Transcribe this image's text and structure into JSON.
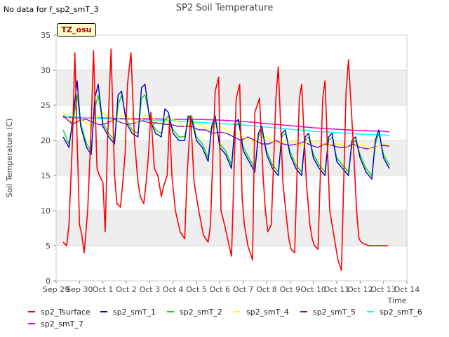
{
  "header": {
    "nodata_note": "No data for f_sp2_smT_3",
    "tz_label": "TZ_osu"
  },
  "chart_data": {
    "type": "line",
    "title": "SP2 Soil Temperature",
    "xlabel": "Time",
    "ylabel": "Soil Temperature (C)",
    "ylim": [
      0,
      35
    ],
    "yticks": [
      0,
      5,
      10,
      15,
      20,
      25,
      30,
      35
    ],
    "xlim": [
      0,
      15
    ],
    "xticks": [
      {
        "v": 0,
        "label": "Sep 29"
      },
      {
        "v": 1,
        "label": "Sep 30"
      },
      {
        "v": 2,
        "label": "Oct 1"
      },
      {
        "v": 3,
        "label": "Oct 2"
      },
      {
        "v": 4,
        "label": "Oct 3"
      },
      {
        "v": 5,
        "label": "Oct 4"
      },
      {
        "v": 6,
        "label": "Oct 5"
      },
      {
        "v": 7,
        "label": "Oct 6"
      },
      {
        "v": 8,
        "label": "Oct 7"
      },
      {
        "v": 9,
        "label": "Oct 8"
      },
      {
        "v": 10,
        "label": "Oct 9"
      },
      {
        "v": 11,
        "label": "Oct 10"
      },
      {
        "v": 12,
        "label": "Oct 11"
      },
      {
        "v": 13,
        "label": "Oct 12"
      },
      {
        "v": 14,
        "label": "Oct 13"
      },
      {
        "v": 15,
        "label": "Oct 14"
      }
    ],
    "series": [
      {
        "name": "sp2_Tsurface",
        "color": "#ff0000",
        "width": 1.6,
        "x": [
          0.3,
          0.45,
          0.55,
          0.7,
          0.8,
          0.9,
          0.95,
          1.0,
          1.1,
          1.2,
          1.35,
          1.5,
          1.6,
          1.75,
          1.85,
          2.0,
          2.1,
          2.2,
          2.35,
          2.5,
          2.6,
          2.75,
          2.85,
          2.95,
          3.05,
          3.2,
          3.35,
          3.5,
          3.6,
          3.75,
          3.85,
          3.95,
          4.05,
          4.2,
          4.35,
          4.5,
          4.6,
          4.75,
          4.85,
          4.95,
          5.1,
          5.3,
          5.5,
          5.6,
          5.75,
          5.9,
          6.0,
          6.1,
          6.3,
          6.5,
          6.6,
          6.8,
          6.95,
          7.05,
          7.2,
          7.4,
          7.5,
          7.7,
          7.85,
          7.95,
          8.05,
          8.2,
          8.4,
          8.5,
          8.7,
          8.85,
          8.95,
          9.05,
          9.2,
          9.4,
          9.5,
          9.7,
          9.85,
          9.95,
          10.05,
          10.2,
          10.4,
          10.5,
          10.7,
          10.85,
          10.95,
          11.05,
          11.2,
          11.4,
          11.5,
          11.7,
          11.85,
          11.95,
          12.05,
          12.2,
          12.4,
          12.5,
          12.7,
          12.85,
          12.95,
          13.05,
          13.2,
          13.4,
          13.5,
          13.7,
          13.85,
          13.95,
          14.05,
          14.2
        ],
        "y": [
          5.5,
          5.0,
          8.0,
          20.0,
          32.5,
          20.0,
          14.0,
          8.0,
          6.5,
          4.0,
          10.0,
          22.0,
          32.8,
          16.0,
          15.0,
          14.0,
          7.0,
          20.0,
          33.0,
          15.0,
          11.0,
          10.5,
          14.0,
          18.0,
          28.0,
          32.5,
          20.0,
          14.0,
          12.0,
          11.0,
          14.0,
          18.0,
          24.0,
          16.0,
          15.0,
          12.0,
          13.5,
          15.0,
          23.0,
          15.0,
          10.0,
          7.0,
          6.0,
          15.0,
          23.5,
          14.0,
          12.0,
          10.0,
          6.5,
          5.5,
          8.0,
          27.0,
          29.0,
          10.0,
          8.0,
          5.0,
          3.5,
          26.0,
          28.0,
          12.0,
          8.0,
          5.0,
          3.0,
          24.0,
          26.0,
          15.0,
          10.0,
          7.0,
          8.0,
          26.0,
          30.5,
          14.0,
          9.0,
          6.0,
          4.5,
          4.0,
          26.0,
          28.0,
          14.0,
          8.0,
          6.0,
          5.0,
          4.5,
          26.0,
          28.5,
          10.0,
          7.0,
          5.0,
          3.0,
          1.5,
          27.0,
          31.5,
          20.0,
          10.0,
          6.0,
          5.5,
          5.2,
          5.0,
          5.0,
          5.0,
          5.0,
          5.0,
          5.0,
          5.0
        ]
      },
      {
        "name": "sp2_smT_1",
        "color": "#0000cc",
        "width": 1.4,
        "x": [
          0.3,
          0.55,
          0.75,
          0.9,
          1.05,
          1.3,
          1.5,
          1.65,
          1.8,
          2.0,
          2.25,
          2.5,
          2.65,
          2.8,
          3.0,
          3.25,
          3.5,
          3.65,
          3.8,
          4.0,
          4.25,
          4.5,
          4.65,
          4.8,
          5.0,
          5.25,
          5.5,
          5.65,
          5.8,
          6.0,
          6.25,
          6.5,
          6.65,
          6.8,
          7.0,
          7.25,
          7.5,
          7.65,
          7.8,
          8.0,
          8.25,
          8.5,
          8.65,
          8.8,
          9.0,
          9.25,
          9.5,
          9.65,
          9.8,
          10.0,
          10.25,
          10.5,
          10.65,
          10.8,
          11.0,
          11.25,
          11.5,
          11.65,
          11.8,
          12.0,
          12.25,
          12.5,
          12.65,
          12.8,
          13.0,
          13.25,
          13.5,
          13.65,
          13.8,
          14.0,
          14.25
        ],
        "y": [
          20.5,
          19.0,
          24.0,
          28.5,
          22.0,
          19.0,
          18.0,
          26.0,
          28.0,
          22.0,
          20.5,
          19.5,
          26.5,
          27.0,
          22.5,
          21.0,
          20.5,
          27.5,
          28.0,
          23.0,
          21.0,
          20.5,
          24.5,
          24.0,
          21.0,
          20.0,
          20.0,
          23.5,
          23.0,
          20.0,
          19.0,
          17.0,
          22.0,
          23.5,
          19.0,
          18.0,
          16.0,
          22.5,
          23.0,
          18.5,
          17.0,
          15.5,
          21.0,
          22.0,
          18.0,
          16.0,
          15.0,
          21.0,
          21.5,
          18.0,
          16.0,
          15.0,
          20.5,
          21.0,
          17.5,
          16.0,
          15.0,
          20.5,
          21.0,
          17.0,
          16.0,
          15.0,
          20.0,
          20.5,
          17.5,
          15.5,
          14.5,
          20.0,
          21.5,
          17.5,
          16.0
        ]
      },
      {
        "name": "sp2_smT_2",
        "color": "#00dd00",
        "width": 1.4,
        "x": [
          0.3,
          0.55,
          0.75,
          0.9,
          1.05,
          1.3,
          1.5,
          1.65,
          1.8,
          2.0,
          2.25,
          2.5,
          2.65,
          2.8,
          3.0,
          3.25,
          3.5,
          3.65,
          3.8,
          4.0,
          4.25,
          4.5,
          4.65,
          4.8,
          5.0,
          5.25,
          5.5,
          5.65,
          5.8,
          6.0,
          6.25,
          6.5,
          6.65,
          6.8,
          7.0,
          7.25,
          7.5,
          7.65,
          7.8,
          8.0,
          8.25,
          8.5,
          8.65,
          8.8,
          9.0,
          9.25,
          9.5,
          9.65,
          9.8,
          10.0,
          10.25,
          10.5,
          10.65,
          10.8,
          11.0,
          11.25,
          11.5,
          11.65,
          11.8,
          12.0,
          12.25,
          12.5,
          12.65,
          12.8,
          13.0,
          13.25,
          13.5,
          13.65,
          13.8,
          14.0,
          14.25
        ],
        "y": [
          21.5,
          19.5,
          23.0,
          26.5,
          22.5,
          19.5,
          18.5,
          24.5,
          26.5,
          22.5,
          21.0,
          20.0,
          25.0,
          26.5,
          23.0,
          21.5,
          21.0,
          26.0,
          26.5,
          23.5,
          21.5,
          21.0,
          23.0,
          23.5,
          21.5,
          20.5,
          20.5,
          23.0,
          23.5,
          20.5,
          19.5,
          17.5,
          21.5,
          23.0,
          19.5,
          18.5,
          16.5,
          22.0,
          22.5,
          19.0,
          17.5,
          16.0,
          20.5,
          21.5,
          18.5,
          16.5,
          15.5,
          20.5,
          21.0,
          18.5,
          16.5,
          15.5,
          20.0,
          20.5,
          18.0,
          16.5,
          15.5,
          20.0,
          20.5,
          17.5,
          16.5,
          15.5,
          19.5,
          20.0,
          18.0,
          16.0,
          15.0,
          19.5,
          21.0,
          18.0,
          16.5
        ]
      },
      {
        "name": "sp2_smT_4",
        "color": "#ffff00",
        "width": 1.4,
        "x": [
          0.3,
          0.7,
          1.0,
          1.3,
          1.5,
          1.8,
          2.0,
          2.3,
          2.5,
          2.8,
          3.0,
          3.3,
          3.5,
          3.8,
          4.0,
          4.3,
          4.5,
          4.8,
          5.0,
          5.3,
          5.5,
          5.8,
          6.0,
          6.3,
          6.5,
          6.8,
          7.0,
          7.3,
          7.5,
          7.8,
          8.0,
          8.3,
          8.5,
          8.8,
          9.0,
          9.3,
          9.5,
          9.8,
          10.0,
          10.3,
          10.5,
          10.8,
          11.0,
          11.3,
          11.5,
          11.8,
          12.0,
          12.3,
          12.5,
          12.8,
          13.0,
          13.3,
          13.5,
          13.8,
          14.0,
          14.25
        ],
        "y": [
          24.0,
          22.5,
          23.0,
          22.5,
          22.0,
          23.5,
          24.0,
          23.0,
          22.5,
          23.5,
          23.5,
          22.8,
          22.5,
          23.5,
          23.5,
          22.8,
          22.5,
          23.0,
          23.0,
          22.5,
          22.0,
          22.5,
          22.5,
          22.0,
          21.5,
          22.0,
          22.0,
          21.5,
          21.0,
          21.0,
          20.5,
          20.0,
          19.8,
          20.5,
          20.5,
          19.8,
          19.5,
          20.0,
          20.0,
          19.5,
          19.3,
          19.8,
          20.0,
          19.5,
          19.3,
          19.5,
          19.5,
          19.3,
          19.0,
          19.3,
          19.5,
          19.0,
          18.8,
          19.2,
          19.5,
          19.3
        ]
      },
      {
        "name": "sp2_smT_5",
        "color": "#8800cc",
        "width": 1.4,
        "x": [
          0.3,
          0.7,
          1.0,
          1.3,
          1.6,
          1.9,
          2.2,
          2.5,
          2.8,
          3.1,
          3.4,
          3.7,
          4.0,
          4.3,
          4.6,
          4.9,
          5.2,
          5.5,
          5.8,
          6.1,
          6.4,
          6.7,
          7.0,
          7.3,
          7.6,
          7.9,
          8.2,
          8.5,
          8.8,
          9.1,
          9.4,
          9.7,
          10.0,
          10.3,
          10.6,
          10.9,
          11.2,
          11.5,
          11.8,
          12.1,
          12.4,
          12.7,
          13.0,
          13.3,
          13.6,
          13.9,
          14.25
        ],
        "y": [
          23.5,
          22.3,
          22.8,
          23.0,
          22.5,
          22.2,
          22.5,
          23.0,
          22.5,
          22.3,
          22.5,
          22.8,
          22.5,
          22.5,
          22.3,
          22.3,
          22.0,
          22.0,
          22.0,
          21.5,
          21.5,
          21.0,
          21.2,
          21.0,
          20.5,
          20.0,
          20.5,
          20.0,
          19.5,
          19.5,
          20.0,
          19.5,
          19.3,
          19.5,
          19.8,
          19.3,
          19.0,
          19.5,
          19.3,
          19.0,
          19.0,
          19.5,
          19.0,
          18.8,
          19.0,
          19.3,
          19.2
        ]
      },
      {
        "name": "sp2_smT_6",
        "color": "#00ffff",
        "width": 1.4,
        "x": [
          0.3,
          1.0,
          2.0,
          3.0,
          4.0,
          5.0,
          6.0,
          7.0,
          8.0,
          9.0,
          10.0,
          11.0,
          12.0,
          13.0,
          14.0,
          14.25
        ],
        "y": [
          23.5,
          23.3,
          23.1,
          23.0,
          22.9,
          22.8,
          22.6,
          22.4,
          22.2,
          21.9,
          21.6,
          21.3,
          21.1,
          20.9,
          20.8,
          20.7
        ]
      },
      {
        "name": "sp2_smT_7",
        "color": "#ee00ee",
        "width": 1.4,
        "x": [
          0.3,
          1.0,
          2.0,
          3.0,
          4.0,
          5.0,
          6.0,
          7.0,
          8.0,
          9.0,
          10.0,
          11.0,
          12.0,
          13.0,
          14.0,
          14.25
        ],
        "y": [
          23.3,
          23.2,
          23.2,
          23.1,
          23.1,
          23.0,
          23.0,
          22.9,
          22.7,
          22.4,
          22.1,
          21.8,
          21.6,
          21.4,
          21.3,
          21.2
        ]
      }
    ]
  }
}
